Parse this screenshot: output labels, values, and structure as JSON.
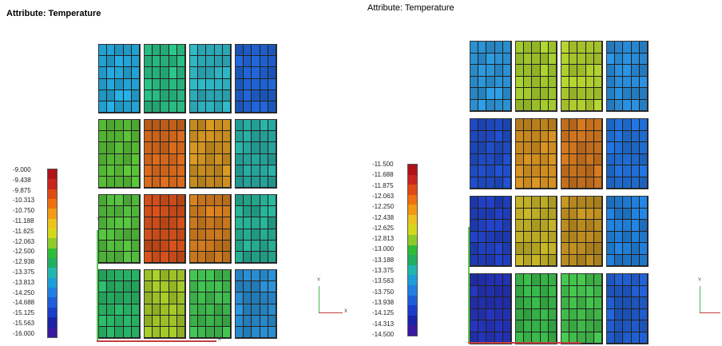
{
  "panels": [
    {
      "id": "left",
      "title": "Attribute: Temperature",
      "legend": [
        "-9.000",
        "-9.438",
        "-9.875",
        "-10.313",
        "-10.750",
        "-11.188",
        "-11.625",
        "-12.063",
        "-12.500",
        "-12.938",
        "-13.375",
        "-13.813",
        "-14.250",
        "-14.688",
        "-15.125",
        "-15.563",
        "-16.000"
      ],
      "axis_labels": {
        "y": "Y",
        "x": "X"
      }
    },
    {
      "id": "right",
      "title": "Attribute: Temperature",
      "legend": [
        "-11.500",
        "-11.688",
        "-11.875",
        "-12.063",
        "-12.250",
        "-12.438",
        "-12.625",
        "-12.813",
        "-13.000",
        "-13.188",
        "-13.375",
        "-13.563",
        "-13.750",
        "-13.938",
        "-14.125",
        "-14.313",
        "-14.500"
      ],
      "axis_labels": {
        "y": "Y",
        "x": "X"
      }
    }
  ],
  "colormap": [
    "#b0121a",
    "#c8261e",
    "#de4a14",
    "#ee7010",
    "#f29a14",
    "#ecc21e",
    "#d4d81c",
    "#8ecb2a",
    "#2fbb38",
    "#1fae62",
    "#22b6b0",
    "#1e9ed8",
    "#1f7fe2",
    "#1e5ed8",
    "#1a3ec8",
    "#1a24a8",
    "#3a1aa0"
  ],
  "left_blocks": [
    [
      "#229fd0",
      "#27b37c",
      "#2ba7b4",
      "#1e5dc8"
    ],
    [
      "#54b734",
      "#c8621a",
      "#c58a1e",
      "#26a39a"
    ],
    [
      "#4fb43a",
      "#c44a18",
      "#c8761c",
      "#25a68c"
    ],
    [
      "#27ae62",
      "#9cc028",
      "#3cb24a",
      "#2887c8"
    ]
  ],
  "right_blocks": [
    [
      "#2a8fd0",
      "#9cc12a",
      "#a4c22a",
      "#2786d0"
    ],
    [
      "#1e4ac2",
      "#c5861e",
      "#c26e1c",
      "#1f6bd0"
    ],
    [
      "#1e3cb8",
      "#b7a624",
      "#b88a20",
      "#1f79cf"
    ],
    [
      "#2230b0",
      "#36b046",
      "#3fb548",
      "#1e5ac8"
    ]
  ]
}
